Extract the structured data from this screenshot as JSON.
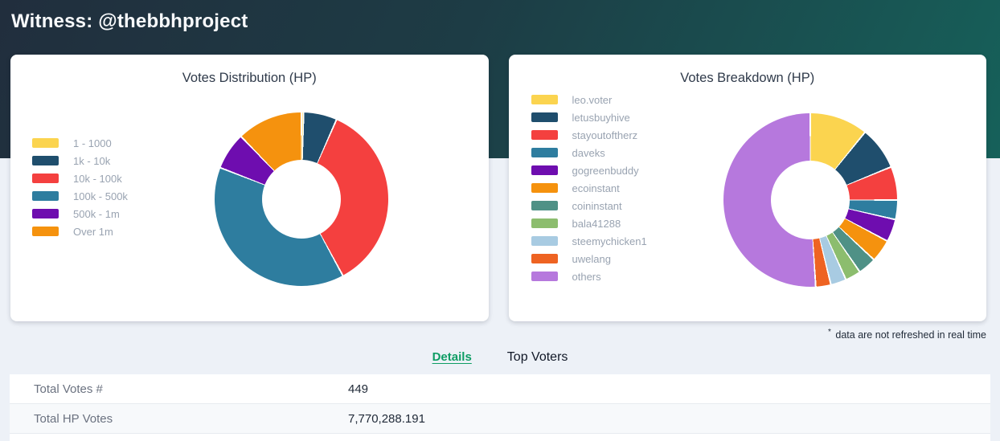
{
  "header": {
    "title": "Witness: @thebbhproject"
  },
  "chart_data": [
    {
      "type": "pie",
      "donut": true,
      "title": "Votes Distribution (HP)",
      "legend_position": "left",
      "unit": "percent_of_total",
      "labels": [
        "1 - 1000",
        "1k - 10k",
        "10k - 100k",
        "100k - 500k",
        "500k - 1m",
        "Over 1m"
      ],
      "values": [
        0.4,
        6.2,
        35.5,
        38.8,
        6.9,
        12.2
      ],
      "colors": [
        "#fbd44f",
        "#1f4e6d",
        "#f4403f",
        "#2e7d9f",
        "#6e0daf",
        "#f5920e"
      ]
    },
    {
      "type": "pie",
      "donut": true,
      "title": "Votes Breakdown (HP)",
      "legend_position": "left",
      "unit": "percent_of_total",
      "labels": [
        "leo.voter",
        "letusbuyhive",
        "stayoutoftherz",
        "daveks",
        "gogreenbuddy",
        "ecoinstant",
        "coininstant",
        "bala41288",
        "steemychicken1",
        "uwelang",
        "others"
      ],
      "values": [
        10.8,
        8.0,
        6.2,
        3.6,
        4.2,
        4.2,
        3.4,
        2.9,
        2.9,
        2.8,
        51.0
      ],
      "colors": [
        "#fbd44f",
        "#1f4e6d",
        "#f4403f",
        "#2e7d9f",
        "#6e0daf",
        "#f5920e",
        "#4f9186",
        "#8cbd6e",
        "#a8cbe2",
        "#ee6322",
        "#b678dd"
      ]
    }
  ],
  "footnote": {
    "asterisk": "*",
    "text": " data are not refreshed in real time"
  },
  "tabs": {
    "active_color": "#0e9d64",
    "items": [
      {
        "label": "Details",
        "active": true
      },
      {
        "label": "Top Voters",
        "active": false
      }
    ]
  },
  "details": {
    "rows": [
      {
        "label": "Total Votes #",
        "value": "449"
      },
      {
        "label": "Total HP Votes",
        "value": "7,770,288.191"
      }
    ]
  }
}
